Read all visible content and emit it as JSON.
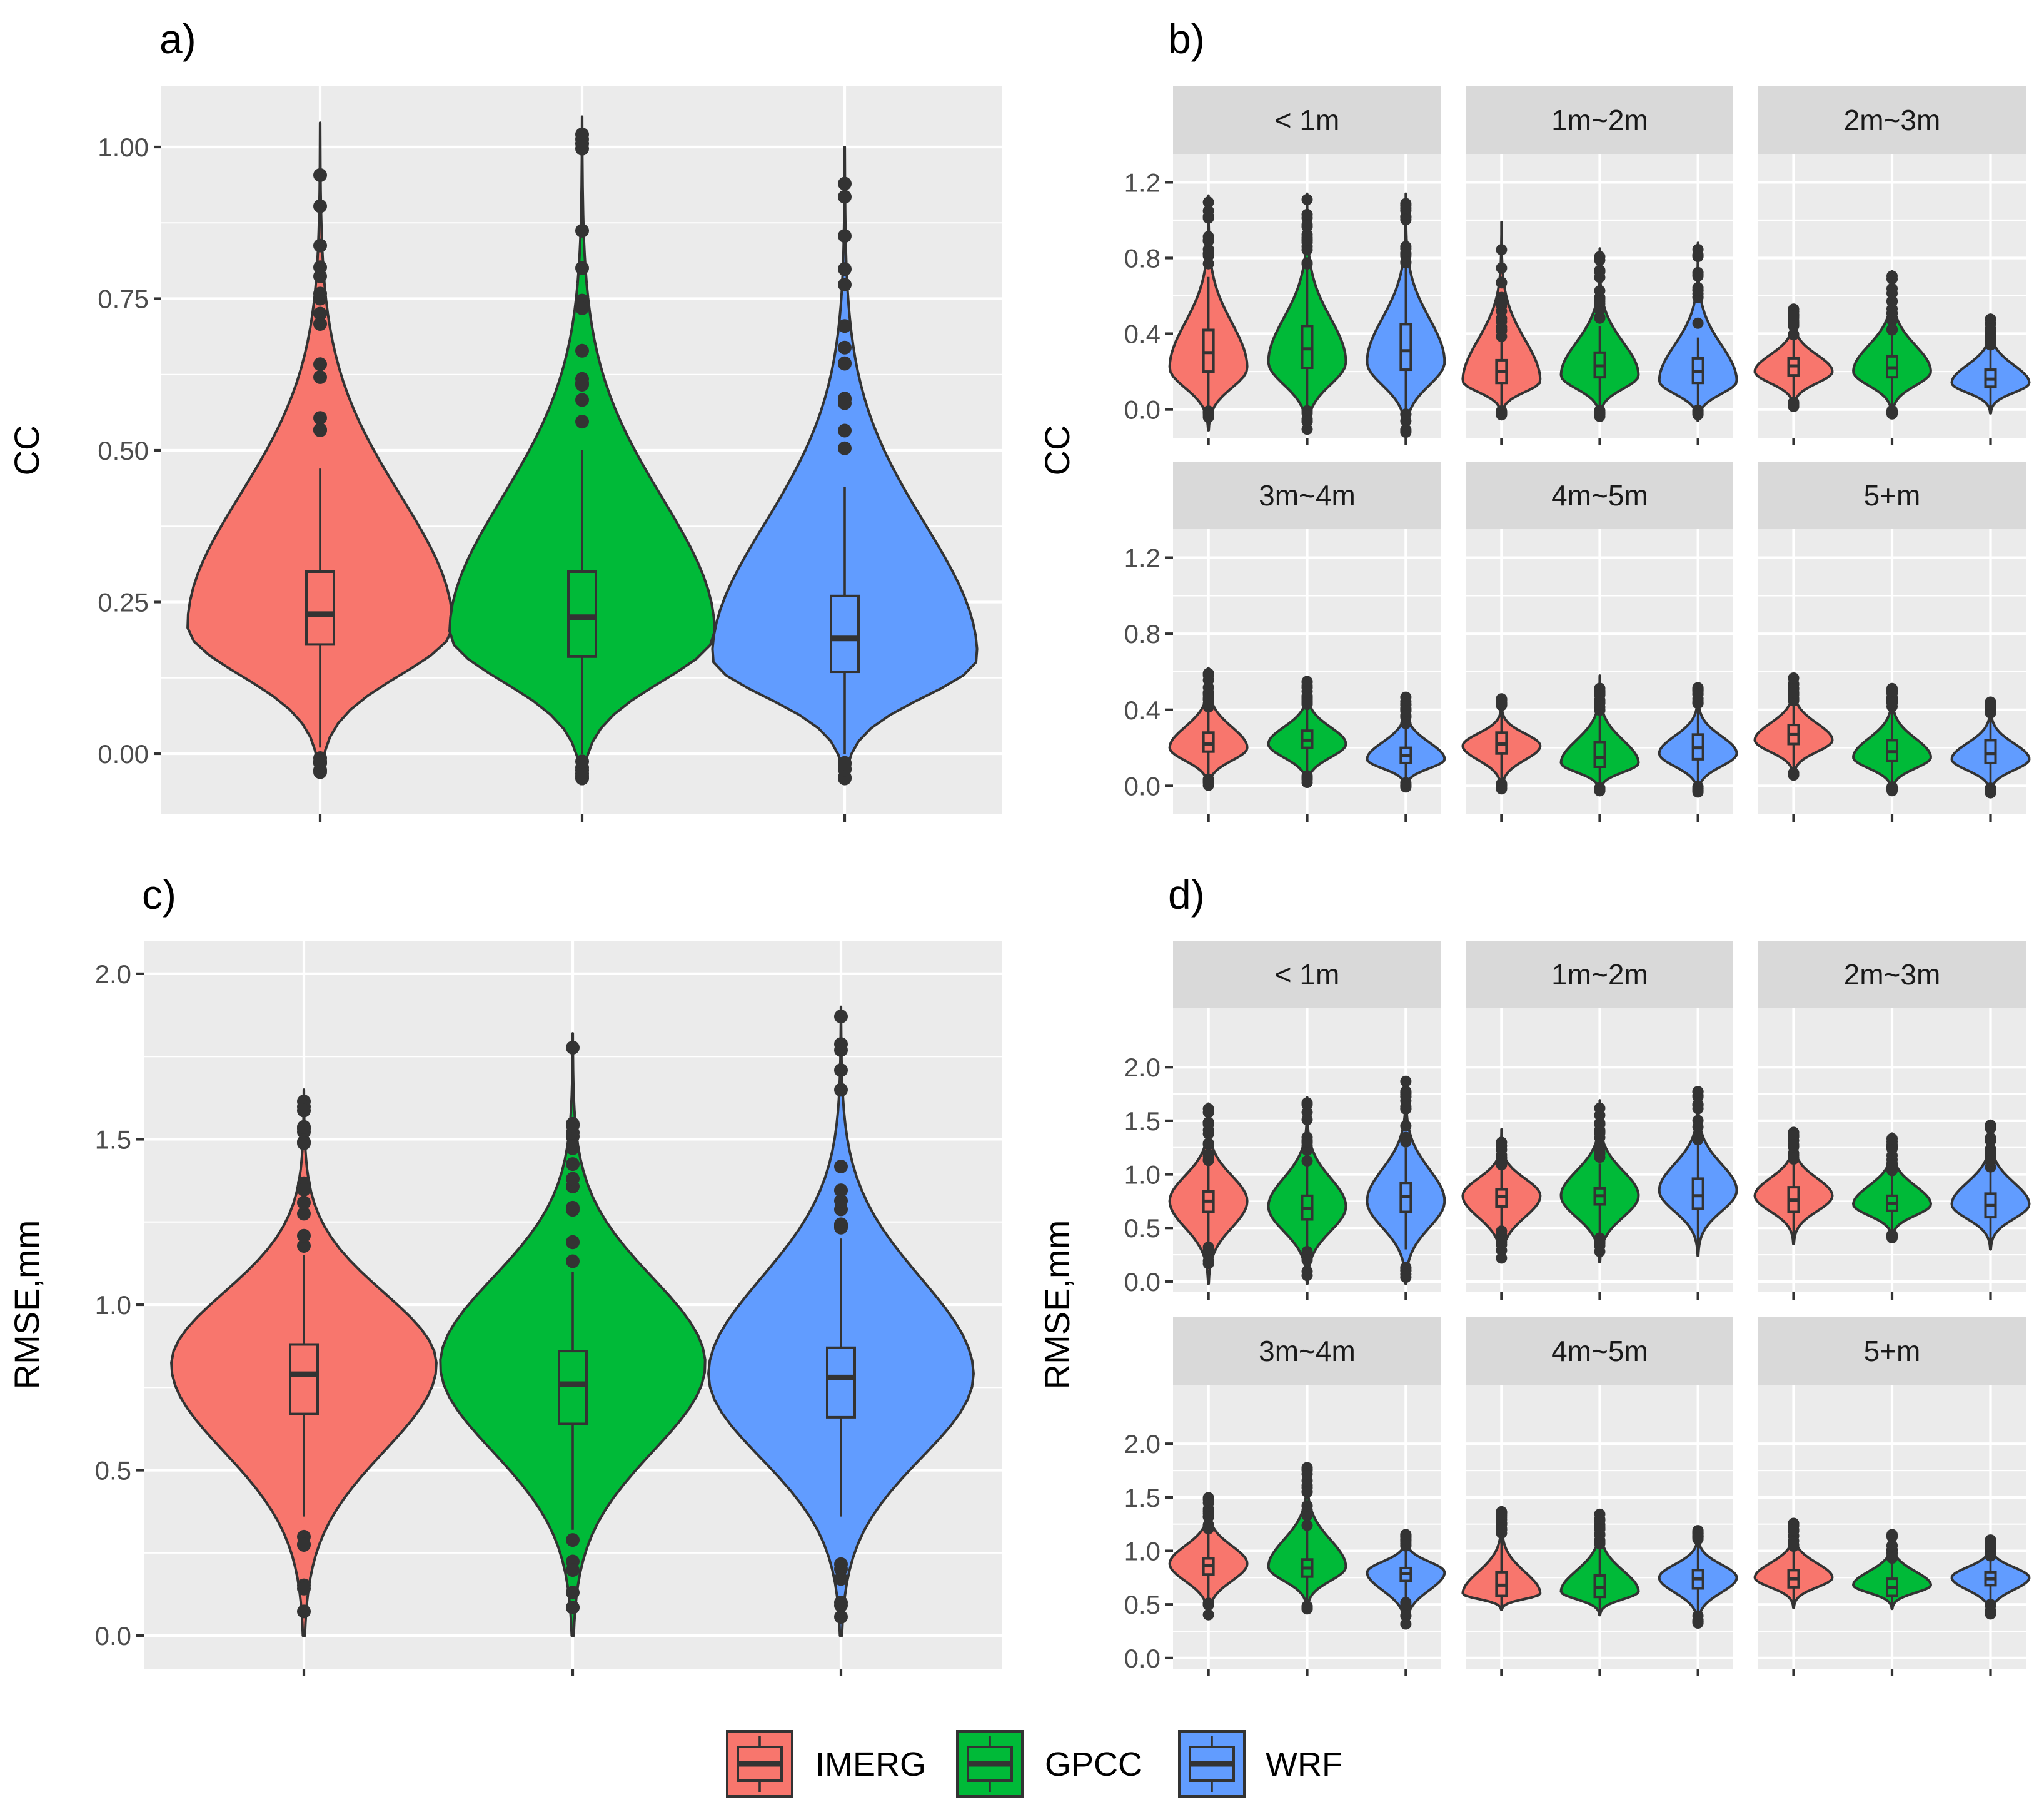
{
  "colors": {
    "IMERG": "#F8766D",
    "GPCC": "#00BA38",
    "WRF": "#619CFF"
  },
  "legend": {
    "items": [
      "IMERG",
      "GPCC",
      "WRF"
    ]
  },
  "chart_data": [
    {
      "id": "a",
      "tag": "a)",
      "type": "violin",
      "ylabel": "CC",
      "ylim": [
        -0.1,
        1.1
      ],
      "yticks": [
        0,
        0.25,
        0.5,
        0.75,
        1.0
      ],
      "ytick_labels": [
        "0.00",
        "0.25",
        "0.50",
        "0.75",
        "1.00"
      ],
      "series": [
        {
          "name": "IMERG",
          "min": -0.04,
          "max": 1.04,
          "mode": 0.21,
          "q1": 0.18,
          "median": 0.23,
          "q3": 0.3,
          "whisker_low": 0.01,
          "whisker_high": 0.47
        },
        {
          "name": "GPCC",
          "min": -0.05,
          "max": 1.05,
          "mode": 0.2,
          "q1": 0.16,
          "median": 0.225,
          "q3": 0.3,
          "whisker_low": 0.0,
          "whisker_high": 0.5
        },
        {
          "name": "WRF",
          "min": -0.045,
          "max": 1.0,
          "mode": 0.16,
          "q1": 0.135,
          "median": 0.19,
          "q3": 0.26,
          "whisker_low": 0.0,
          "whisker_high": 0.44
        }
      ]
    },
    {
      "id": "b",
      "tag": "b)",
      "type": "violin-facet",
      "ylabel": "CC",
      "ylim": [
        -0.15,
        1.35
      ],
      "yticks": [
        0,
        0.4,
        0.8,
        1.2
      ],
      "ytick_labels": [
        "0.0",
        "0.4",
        "0.8",
        "1.2"
      ],
      "facets": [
        {
          "label": "< 1m",
          "series": [
            {
              "name": "IMERG",
              "min": -0.11,
              "max": 1.13,
              "mode": 0.22,
              "q1": 0.2,
              "median": 0.3,
              "q3": 0.42,
              "whisker_low": 0.0,
              "whisker_high": 0.7
            },
            {
              "name": "GPCC",
              "min": -0.12,
              "max": 1.14,
              "mode": 0.25,
              "q1": 0.22,
              "median": 0.32,
              "q3": 0.44,
              "whisker_low": 0.0,
              "whisker_high": 0.75
            },
            {
              "name": "WRF",
              "min": -0.13,
              "max": 1.14,
              "mode": 0.25,
              "q1": 0.21,
              "median": 0.31,
              "q3": 0.45,
              "whisker_low": 0.0,
              "whisker_high": 0.75
            }
          ]
        },
        {
          "label": "1m~2m",
          "series": [
            {
              "name": "IMERG",
              "min": -0.03,
              "max": 0.99,
              "mode": 0.15,
              "q1": 0.14,
              "median": 0.2,
              "q3": 0.26,
              "whisker_low": 0.0,
              "whisker_high": 0.36
            },
            {
              "name": "GPCC",
              "min": -0.04,
              "max": 0.85,
              "mode": 0.18,
              "q1": 0.17,
              "median": 0.23,
              "q3": 0.3,
              "whisker_low": 0.0,
              "whisker_high": 0.44
            },
            {
              "name": "WRF",
              "min": -0.06,
              "max": 0.88,
              "mode": 0.15,
              "q1": 0.14,
              "median": 0.2,
              "q3": 0.27,
              "whisker_low": 0.0,
              "whisker_high": 0.38
            }
          ]
        },
        {
          "label": "2m~3m",
          "series": [
            {
              "name": "IMERG",
              "min": 0.01,
              "max": 0.54,
              "mode": 0.2,
              "q1": 0.18,
              "median": 0.23,
              "q3": 0.27,
              "whisker_low": 0.04,
              "whisker_high": 0.38
            },
            {
              "name": "GPCC",
              "min": -0.03,
              "max": 0.73,
              "mode": 0.2,
              "q1": 0.17,
              "median": 0.22,
              "q3": 0.28,
              "whisker_low": 0.0,
              "whisker_high": 0.4
            },
            {
              "name": "WRF",
              "min": -0.02,
              "max": 0.5,
              "mode": 0.14,
              "q1": 0.12,
              "median": 0.16,
              "q3": 0.21,
              "whisker_low": 0.0,
              "whisker_high": 0.33
            }
          ]
        },
        {
          "label": "3m~4m",
          "series": [
            {
              "name": "IMERG",
              "min": -0.01,
              "max": 0.62,
              "mode": 0.2,
              "q1": 0.18,
              "median": 0.22,
              "q3": 0.28,
              "whisker_low": 0.04,
              "whisker_high": 0.4
            },
            {
              "name": "GPCC",
              "min": 0.0,
              "max": 0.56,
              "mode": 0.22,
              "q1": 0.2,
              "median": 0.24,
              "q3": 0.29,
              "whisker_low": 0.06,
              "whisker_high": 0.41
            },
            {
              "name": "WRF",
              "min": -0.01,
              "max": 0.48,
              "mode": 0.14,
              "q1": 0.12,
              "median": 0.16,
              "q3": 0.2,
              "whisker_low": 0.02,
              "whisker_high": 0.3
            }
          ]
        },
        {
          "label": "4m~5m",
          "series": [
            {
              "name": "IMERG",
              "min": -0.02,
              "max": 0.46,
              "mode": 0.21,
              "q1": 0.17,
              "median": 0.22,
              "q3": 0.28,
              "whisker_low": 0.02,
              "whisker_high": 0.42
            },
            {
              "name": "GPCC",
              "min": -0.03,
              "max": 0.58,
              "mode": 0.12,
              "q1": 0.1,
              "median": 0.15,
              "q3": 0.23,
              "whisker_low": 0.0,
              "whisker_high": 0.39
            },
            {
              "name": "WRF",
              "min": -0.04,
              "max": 0.52,
              "mode": 0.17,
              "q1": 0.14,
              "median": 0.2,
              "q3": 0.27,
              "whisker_low": 0.0,
              "whisker_high": 0.43
            }
          ]
        },
        {
          "label": "5+m",
          "series": [
            {
              "name": "IMERG",
              "min": 0.05,
              "max": 0.58,
              "mode": 0.24,
              "q1": 0.22,
              "median": 0.27,
              "q3": 0.32,
              "whisker_low": 0.1,
              "whisker_high": 0.44
            },
            {
              "name": "GPCC",
              "min": -0.03,
              "max": 0.53,
              "mode": 0.15,
              "q1": 0.13,
              "median": 0.18,
              "q3": 0.24,
              "whisker_low": 0.0,
              "whisker_high": 0.4
            },
            {
              "name": "WRF",
              "min": -0.04,
              "max": 0.46,
              "mode": 0.14,
              "q1": 0.12,
              "median": 0.17,
              "q3": 0.24,
              "whisker_low": 0.0,
              "whisker_high": 0.38
            }
          ]
        }
      ]
    },
    {
      "id": "c",
      "tag": "c)",
      "type": "violin",
      "ylabel": "RMSE,mm",
      "ylim": [
        -0.1,
        2.1
      ],
      "yticks": [
        0,
        0.5,
        1.0,
        1.5,
        2.0
      ],
      "ytick_labels": [
        "0.0",
        "0.5",
        "1.0",
        "1.5",
        "2.0"
      ],
      "series": [
        {
          "name": "IMERG",
          "min": 0.0,
          "max": 1.65,
          "mode": 0.82,
          "q1": 0.67,
          "median": 0.79,
          "q3": 0.88,
          "whisker_low": 0.36,
          "whisker_high": 1.15
        },
        {
          "name": "GPCC",
          "min": 0.0,
          "max": 1.82,
          "mode": 0.82,
          "q1": 0.64,
          "median": 0.76,
          "q3": 0.86,
          "whisker_low": 0.32,
          "whisker_high": 1.1
        },
        {
          "name": "WRF",
          "min": 0.0,
          "max": 1.9,
          "mode": 0.79,
          "q1": 0.66,
          "median": 0.78,
          "q3": 0.87,
          "whisker_low": 0.36,
          "whisker_high": 1.2
        }
      ]
    },
    {
      "id": "d",
      "tag": "d)",
      "type": "violin-facet",
      "ylabel": "RMSE,mm",
      "ylim": [
        -0.1,
        2.55
      ],
      "yticks": [
        0,
        0.5,
        1.0,
        1.5,
        2.0
      ],
      "ytick_labels": [
        "0.0",
        "0.5",
        "1.0",
        "1.5",
        "2.0"
      ],
      "facets": [
        {
          "label": "< 1m",
          "series": [
            {
              "name": "IMERG",
              "min": -0.02,
              "max": 1.66,
              "mode": 0.75,
              "q1": 0.65,
              "median": 0.75,
              "q3": 0.84,
              "whisker_low": 0.35,
              "whisker_high": 1.1
            },
            {
              "name": "GPCC",
              "min": -0.02,
              "max": 1.72,
              "mode": 0.7,
              "q1": 0.58,
              "median": 0.68,
              "q3": 0.8,
              "whisker_low": 0.3,
              "whisker_high": 1.1
            },
            {
              "name": "WRF",
              "min": -0.02,
              "max": 1.9,
              "mode": 0.75,
              "q1": 0.65,
              "median": 0.79,
              "q3": 0.92,
              "whisker_low": 0.3,
              "whisker_high": 1.25
            }
          ]
        },
        {
          "label": "1m~2m",
          "series": [
            {
              "name": "IMERG",
              "min": 0.18,
              "max": 1.42,
              "mode": 0.8,
              "q1": 0.7,
              "median": 0.79,
              "q3": 0.86,
              "whisker_low": 0.5,
              "whisker_high": 1.05
            },
            {
              "name": "GPCC",
              "min": 0.18,
              "max": 1.69,
              "mode": 0.8,
              "q1": 0.72,
              "median": 0.8,
              "q3": 0.87,
              "whisker_low": 0.45,
              "whisker_high": 1.1
            },
            {
              "name": "WRF",
              "min": 0.24,
              "max": 1.8,
              "mode": 0.85,
              "q1": 0.68,
              "median": 0.8,
              "q3": 0.96,
              "whisker_low": 0.25,
              "whisker_high": 1.3
            }
          ]
        },
        {
          "label": "2m~3m",
          "series": [
            {
              "name": "IMERG",
              "min": 0.35,
              "max": 1.43,
              "mode": 0.8,
              "q1": 0.65,
              "median": 0.76,
              "q3": 0.88,
              "whisker_low": 0.35,
              "whisker_high": 1.1
            },
            {
              "name": "GPCC",
              "min": 0.4,
              "max": 1.38,
              "mode": 0.72,
              "q1": 0.66,
              "median": 0.73,
              "q3": 0.8,
              "whisker_low": 0.45,
              "whisker_high": 1.02
            },
            {
              "name": "WRF",
              "min": 0.3,
              "max": 1.5,
              "mode": 0.72,
              "q1": 0.6,
              "median": 0.71,
              "q3": 0.82,
              "whisker_low": 0.3,
              "whisker_high": 1.05
            }
          ]
        },
        {
          "label": "3m~4m",
          "series": [
            {
              "name": "IMERG",
              "min": 0.38,
              "max": 1.52,
              "mode": 0.88,
              "q1": 0.78,
              "median": 0.86,
              "q3": 0.93,
              "whisker_low": 0.55,
              "whisker_high": 1.17
            },
            {
              "name": "GPCC",
              "min": 0.45,
              "max": 1.82,
              "mode": 0.85,
              "q1": 0.76,
              "median": 0.84,
              "q3": 0.92,
              "whisker_low": 0.5,
              "whisker_high": 1.2
            },
            {
              "name": "WRF",
              "min": 0.28,
              "max": 1.18,
              "mode": 0.8,
              "q1": 0.72,
              "median": 0.79,
              "q3": 0.84,
              "whisker_low": 0.55,
              "whisker_high": 1.02
            }
          ]
        },
        {
          "label": "4m~5m",
          "series": [
            {
              "name": "IMERG",
              "min": 0.45,
              "max": 1.38,
              "mode": 0.6,
              "q1": 0.58,
              "median": 0.68,
              "q3": 0.8,
              "whisker_low": 0.45,
              "whisker_high": 1.15
            },
            {
              "name": "GPCC",
              "min": 0.4,
              "max": 1.37,
              "mode": 0.62,
              "q1": 0.57,
              "median": 0.66,
              "q3": 0.77,
              "whisker_low": 0.4,
              "whisker_high": 1.05
            },
            {
              "name": "WRF",
              "min": 0.32,
              "max": 1.22,
              "mode": 0.75,
              "q1": 0.65,
              "median": 0.74,
              "q3": 0.82,
              "whisker_low": 0.4,
              "whisker_high": 1.1
            }
          ]
        },
        {
          "label": "5+m",
          "series": [
            {
              "name": "IMERG",
              "min": 0.47,
              "max": 1.27,
              "mode": 0.75,
              "q1": 0.66,
              "median": 0.74,
              "q3": 0.82,
              "whisker_low": 0.47,
              "whisker_high": 1.02
            },
            {
              "name": "GPCC",
              "min": 0.46,
              "max": 1.17,
              "mode": 0.68,
              "q1": 0.58,
              "median": 0.66,
              "q3": 0.74,
              "whisker_low": 0.46,
              "whisker_high": 0.92
            },
            {
              "name": "WRF",
              "min": 0.4,
              "max": 1.12,
              "mode": 0.75,
              "q1": 0.68,
              "median": 0.74,
              "q3": 0.8,
              "whisker_low": 0.55,
              "whisker_high": 0.93
            }
          ]
        }
      ]
    }
  ]
}
